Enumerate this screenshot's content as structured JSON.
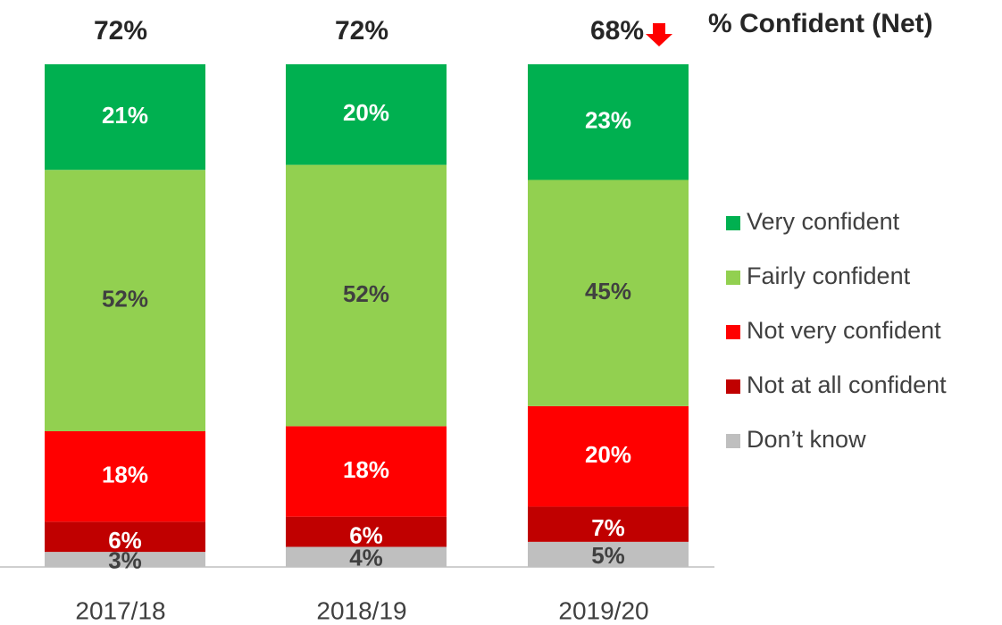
{
  "chart_data": {
    "type": "stacked_bar",
    "title": "% Confident (Net)",
    "categories": [
      "2017/18",
      "2018/19",
      "2019/20"
    ],
    "ylim": [
      0,
      100
    ],
    "series": [
      {
        "name": "Don’t know",
        "color": "#bfbfbf",
        "label_color": "#404040",
        "values": [
          3,
          4,
          5
        ],
        "value_labels": [
          "3%",
          "4%",
          "5%"
        ]
      },
      {
        "name": "Not at all confident",
        "color": "#c00000",
        "label_color": "#ffffff",
        "values": [
          6,
          6,
          7
        ],
        "value_labels": [
          "6%",
          "6%",
          "7%"
        ]
      },
      {
        "name": "Not very confident",
        "color": "#ff0000",
        "label_color": "#ffffff",
        "values": [
          18,
          18,
          20
        ],
        "value_labels": [
          "18%",
          "18%",
          "20%"
        ]
      },
      {
        "name": "Fairly confident",
        "color": "#92d050",
        "label_color": "#404040",
        "values": [
          52,
          52,
          45
        ],
        "value_labels": [
          "52%",
          "52%",
          "45%"
        ]
      },
      {
        "name": "Very confident",
        "color": "#00b050",
        "label_color": "#ffffff",
        "values": [
          21,
          20,
          23
        ],
        "value_labels": [
          "21%",
          "20%",
          "23%"
        ]
      }
    ],
    "net": {
      "values": [
        72,
        72,
        68
      ],
      "value_labels": [
        "72%",
        "72%",
        "68%"
      ]
    }
  }
}
